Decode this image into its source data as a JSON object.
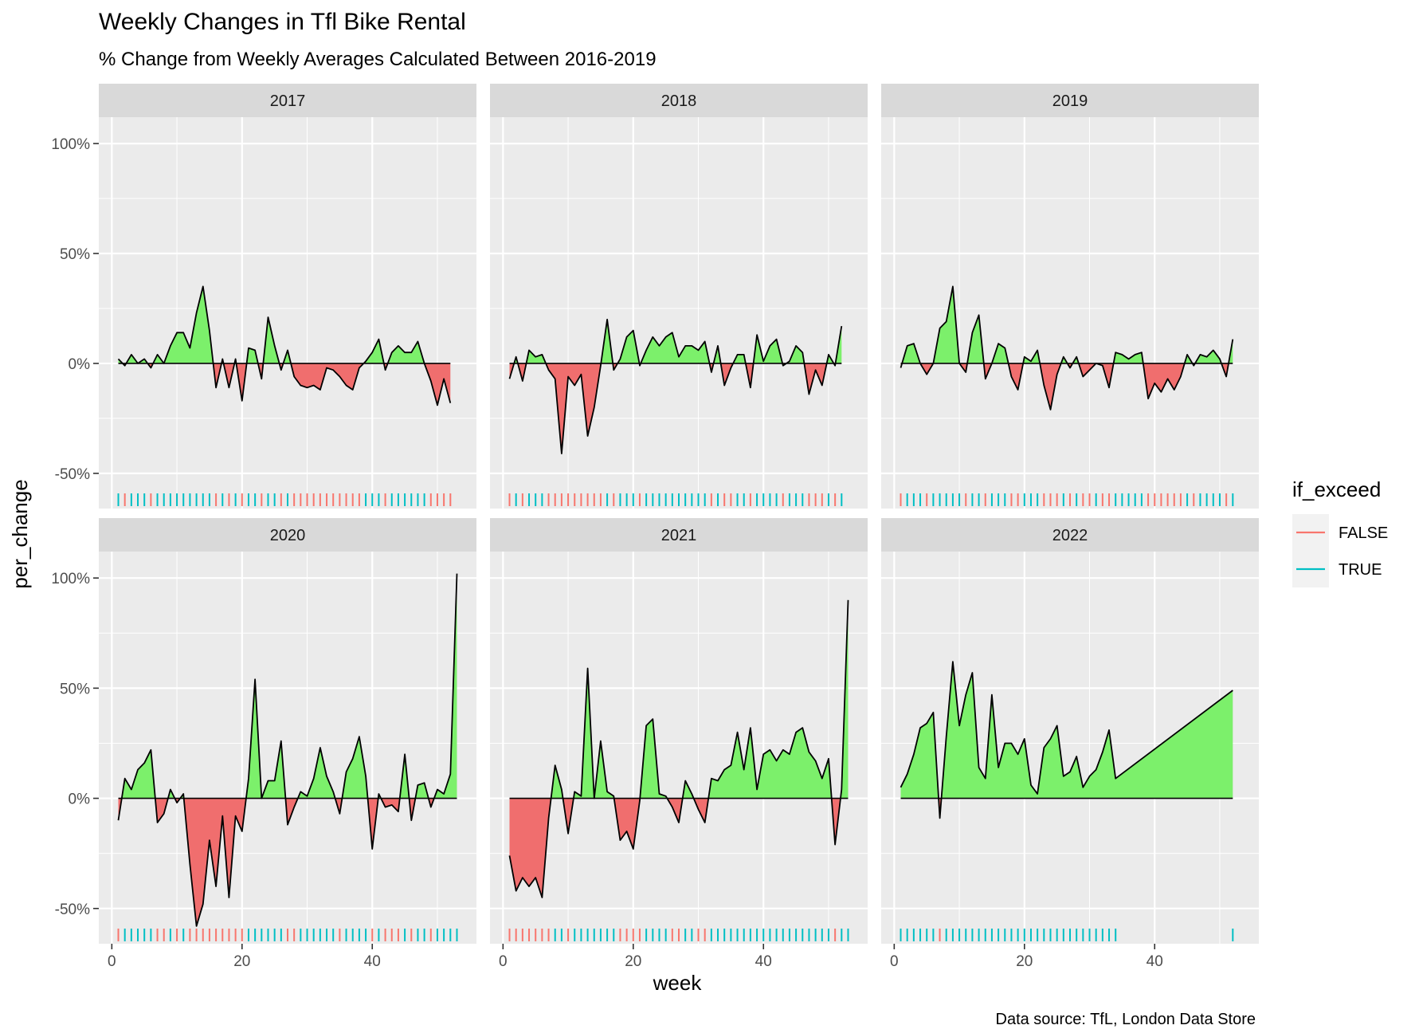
{
  "chart_data": {
    "type": "area",
    "title": "Weekly Changes in Tfl Bike Rental",
    "subtitle": "% Change from Weekly Averages Calculated Between 2016-2019",
    "xlabel": "week",
    "ylabel": "per_change",
    "caption": "Data source: TfL, London Data Store",
    "xlim": [
      -2,
      56
    ],
    "ylim": [
      -0.66,
      1.12
    ],
    "x_ticks": [
      0,
      20,
      40
    ],
    "x_tick_labels": [
      "0",
      "20",
      "40"
    ],
    "y_ticks": [
      -0.5,
      0,
      0.5,
      1
    ],
    "y_tick_labels": [
      "-50%",
      "0%",
      "50%",
      "100%"
    ],
    "grid": true,
    "positive_fill": "#7CF06B",
    "negative_fill": "#F06E6E",
    "legend": {
      "title": "if_exceed",
      "position": "right",
      "entries": [
        {
          "label": "FALSE",
          "color": "#F8766D"
        },
        {
          "label": "TRUE",
          "color": "#00BFC4"
        }
      ]
    },
    "panels": [
      {
        "label": "2017",
        "x": [
          1,
          2,
          3,
          4,
          5,
          6,
          7,
          8,
          9,
          10,
          11,
          12,
          13,
          14,
          15,
          16,
          17,
          18,
          19,
          20,
          21,
          22,
          23,
          24,
          25,
          26,
          27,
          28,
          29,
          30,
          31,
          32,
          33,
          34,
          35,
          36,
          37,
          38,
          39,
          40,
          41,
          42,
          43,
          44,
          45,
          46,
          47,
          48,
          49,
          50,
          51,
          52
        ],
        "values": [
          0.02,
          -0.01,
          0.04,
          0.0,
          0.02,
          -0.02,
          0.04,
          0.0,
          0.08,
          0.14,
          0.14,
          0.07,
          0.23,
          0.35,
          0.15,
          -0.11,
          0.02,
          -0.11,
          0.02,
          -0.17,
          0.07,
          0.06,
          -0.07,
          0.21,
          0.08,
          -0.03,
          0.06,
          -0.06,
          -0.1,
          -0.11,
          -0.1,
          -0.12,
          -0.02,
          -0.03,
          -0.06,
          -0.1,
          -0.12,
          -0.02,
          0.01,
          0.05,
          0.11,
          -0.03,
          0.05,
          0.08,
          0.05,
          0.05,
          0.1,
          0.0,
          -0.08,
          -0.19,
          -0.07,
          -0.18
        ]
      },
      {
        "label": "2018",
        "x": [
          1,
          2,
          3,
          4,
          5,
          6,
          7,
          8,
          9,
          10,
          11,
          12,
          13,
          14,
          15,
          16,
          17,
          18,
          19,
          20,
          21,
          22,
          23,
          24,
          25,
          26,
          27,
          28,
          29,
          30,
          31,
          32,
          33,
          34,
          35,
          36,
          37,
          38,
          39,
          40,
          41,
          42,
          43,
          44,
          45,
          46,
          47,
          48,
          49,
          50,
          51,
          52
        ],
        "values": [
          -0.07,
          0.03,
          -0.08,
          0.06,
          0.03,
          0.04,
          -0.03,
          -0.07,
          -0.41,
          -0.06,
          -0.1,
          -0.05,
          -0.33,
          -0.2,
          -0.01,
          0.2,
          -0.03,
          0.02,
          0.12,
          0.15,
          -0.01,
          0.06,
          0.12,
          0.08,
          0.12,
          0.14,
          0.03,
          0.08,
          0.08,
          0.06,
          0.1,
          -0.04,
          0.08,
          -0.1,
          -0.02,
          0.04,
          0.04,
          -0.11,
          0.13,
          0.01,
          0.08,
          0.11,
          -0.01,
          0.01,
          0.08,
          0.05,
          -0.14,
          -0.03,
          -0.1,
          0.04,
          -0.01,
          0.17
        ]
      },
      {
        "label": "2019",
        "x": [
          1,
          2,
          3,
          4,
          5,
          6,
          7,
          8,
          9,
          10,
          11,
          12,
          13,
          14,
          15,
          16,
          17,
          18,
          19,
          20,
          21,
          22,
          23,
          24,
          25,
          26,
          27,
          28,
          29,
          30,
          31,
          32,
          33,
          34,
          35,
          36,
          37,
          38,
          39,
          40,
          41,
          42,
          43,
          44,
          45,
          46,
          47,
          48,
          49,
          50,
          51,
          52
        ],
        "values": [
          -0.02,
          0.08,
          0.09,
          0.0,
          -0.05,
          0.0,
          0.16,
          0.19,
          0.35,
          0.0,
          -0.04,
          0.14,
          0.22,
          -0.07,
          0.0,
          0.09,
          0.07,
          -0.06,
          -0.12,
          0.03,
          0.01,
          0.06,
          -0.1,
          -0.21,
          -0.05,
          0.03,
          -0.02,
          0.03,
          -0.06,
          -0.03,
          0.0,
          -0.01,
          -0.11,
          0.05,
          0.04,
          0.02,
          0.04,
          0.05,
          -0.16,
          -0.09,
          -0.13,
          -0.07,
          -0.12,
          -0.06,
          0.04,
          -0.01,
          0.04,
          0.03,
          0.06,
          0.02,
          -0.06,
          0.11
        ]
      },
      {
        "label": "2020",
        "x": [
          1,
          2,
          3,
          4,
          5,
          6,
          7,
          8,
          9,
          10,
          11,
          12,
          13,
          14,
          15,
          16,
          17,
          18,
          19,
          20,
          21,
          22,
          23,
          24,
          25,
          26,
          27,
          28,
          29,
          30,
          31,
          32,
          33,
          34,
          35,
          36,
          37,
          38,
          39,
          40,
          41,
          42,
          43,
          44,
          45,
          46,
          47,
          48,
          49,
          50,
          51,
          52,
          53
        ],
        "values": [
          -0.1,
          0.09,
          0.04,
          0.13,
          0.16,
          0.22,
          -0.11,
          -0.07,
          0.04,
          -0.02,
          0.02,
          -0.3,
          -0.58,
          -0.48,
          -0.19,
          -0.4,
          -0.08,
          -0.45,
          -0.08,
          -0.15,
          0.09,
          0.54,
          0.0,
          0.08,
          0.08,
          0.26,
          -0.12,
          -0.04,
          0.03,
          0.01,
          0.09,
          0.23,
          0.1,
          0.03,
          -0.07,
          0.12,
          0.18,
          0.28,
          0.1,
          -0.23,
          0.02,
          -0.04,
          -0.03,
          -0.06,
          0.2,
          -0.1,
          0.06,
          0.07,
          -0.04,
          0.04,
          0.02,
          0.11,
          1.02
        ]
      },
      {
        "label": "2021",
        "x": [
          1,
          2,
          3,
          4,
          5,
          6,
          7,
          8,
          9,
          10,
          11,
          12,
          13,
          14,
          15,
          16,
          17,
          18,
          19,
          20,
          21,
          22,
          23,
          24,
          25,
          26,
          27,
          28,
          29,
          30,
          31,
          32,
          33,
          34,
          35,
          36,
          37,
          38,
          39,
          40,
          41,
          42,
          43,
          44,
          45,
          46,
          47,
          48,
          49,
          50,
          51,
          52,
          53
        ],
        "values": [
          -0.26,
          -0.42,
          -0.36,
          -0.4,
          -0.36,
          -0.45,
          -0.09,
          0.15,
          0.04,
          -0.16,
          0.03,
          0.01,
          0.59,
          0.0,
          0.26,
          0.03,
          0.01,
          -0.19,
          -0.15,
          -0.23,
          -0.01,
          0.33,
          0.36,
          0.02,
          0.01,
          -0.04,
          -0.11,
          0.08,
          0.02,
          -0.05,
          -0.11,
          0.09,
          0.08,
          0.13,
          0.15,
          0.3,
          0.13,
          0.32,
          0.04,
          0.2,
          0.22,
          0.17,
          0.22,
          0.2,
          0.3,
          0.32,
          0.21,
          0.17,
          0.09,
          0.18,
          -0.21,
          0.04,
          0.9
        ]
      },
      {
        "label": "2022",
        "x": [
          1,
          2,
          3,
          4,
          5,
          6,
          7,
          8,
          9,
          10,
          11,
          12,
          13,
          14,
          15,
          16,
          17,
          18,
          19,
          20,
          21,
          22,
          23,
          24,
          25,
          26,
          27,
          28,
          29,
          30,
          31,
          32,
          33,
          34,
          52
        ],
        "values": [
          0.05,
          0.11,
          0.2,
          0.32,
          0.34,
          0.39,
          -0.09,
          0.28,
          0.62,
          0.33,
          0.47,
          0.57,
          0.14,
          0.09,
          0.47,
          0.14,
          0.25,
          0.25,
          0.2,
          0.27,
          0.06,
          0.02,
          0.23,
          0.27,
          0.33,
          0.1,
          0.12,
          0.19,
          0.05,
          0.1,
          0.13,
          0.21,
          0.31,
          0.09,
          0.49
        ]
      }
    ]
  }
}
